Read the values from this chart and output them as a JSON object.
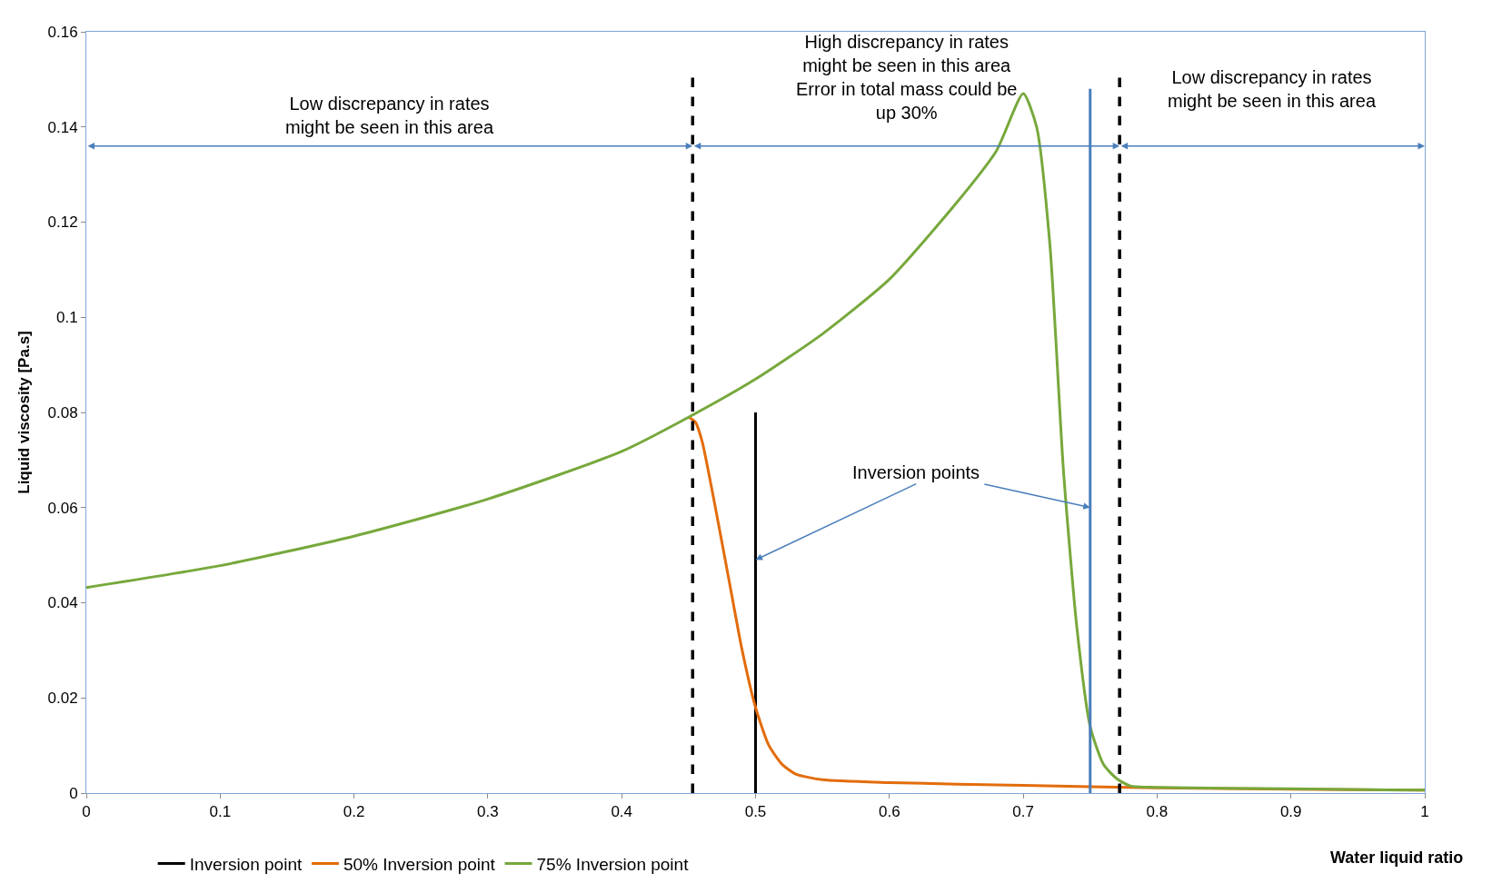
{
  "chart_data": {
    "type": "line",
    "xlabel": "Water liquid ratio",
    "ylabel": "Liquid viscosity [Pa.s]",
    "xlim": [
      0,
      1
    ],
    "ylim": [
      0,
      0.16
    ],
    "xticks": [
      0,
      0.1,
      0.2,
      0.3,
      0.4,
      0.5,
      0.6,
      0.7,
      0.8,
      0.9,
      1
    ],
    "yticks": [
      0,
      0.02,
      0.04,
      0.06,
      0.08,
      0.1,
      0.12,
      0.14,
      0.16
    ],
    "legend": "bottom",
    "marker": "none",
    "line_style": "solid",
    "series": [
      {
        "name": "Inversion point",
        "color": "#000000",
        "x": [
          0.5,
          0.5
        ],
        "values": [
          0,
          0.08
        ]
      },
      {
        "name": "50% Inversion point",
        "color": "#e36c0a",
        "x": [
          0.45,
          0.455,
          0.46,
          0.47,
          0.48,
          0.49,
          0.5,
          0.51,
          0.52,
          0.53,
          0.55,
          0.6,
          0.7,
          0.8,
          0.9,
          1
        ],
        "values": [
          0.079,
          0.078,
          0.074,
          0.06,
          0.045,
          0.03,
          0.018,
          0.01,
          0.006,
          0.004,
          0.0028,
          0.0022,
          0.0016,
          0.0011,
          0.0008,
          0.0006
        ]
      },
      {
        "name": "75% Inversion point",
        "color": "#77a83c",
        "x": [
          0,
          0.1,
          0.2,
          0.3,
          0.4,
          0.45,
          0.5,
          0.55,
          0.6,
          0.65,
          0.68,
          0.7,
          0.71,
          0.72,
          0.73,
          0.74,
          0.75,
          0.76,
          0.77,
          0.78,
          0.8,
          0.9,
          1
        ],
        "values": [
          0.0432,
          0.0478,
          0.054,
          0.0618,
          0.0718,
          0.079,
          0.087,
          0.0965,
          0.108,
          0.124,
          0.135,
          0.147,
          0.14,
          0.115,
          0.068,
          0.035,
          0.014,
          0.006,
          0.003,
          0.0015,
          0.0012,
          0.0009,
          0.0006
        ]
      },
      {
        "color": "#4a7ebb",
        "x": [
          0.75,
          0.75
        ],
        "values": [
          0,
          0.148
        ]
      }
    ],
    "ref_lines": [
      {
        "axis": "x",
        "value": 0.453,
        "color": "#000000",
        "line_style": "dashed"
      },
      {
        "axis": "x",
        "value": 0.772,
        "color": "#000000",
        "line_style": "dashed"
      }
    ],
    "annotations": [
      "Low discrepancy in rates\nmight be seen in this area",
      "High discrepancy in rates\nmight be seen in this area\nError in total mass could be\nup 30%",
      "Low discrepancy in rates\nmight be seen in this area",
      {
        "text": "Inversion points",
        "x": 0.5,
        "y": 0.049
      }
    ]
  }
}
